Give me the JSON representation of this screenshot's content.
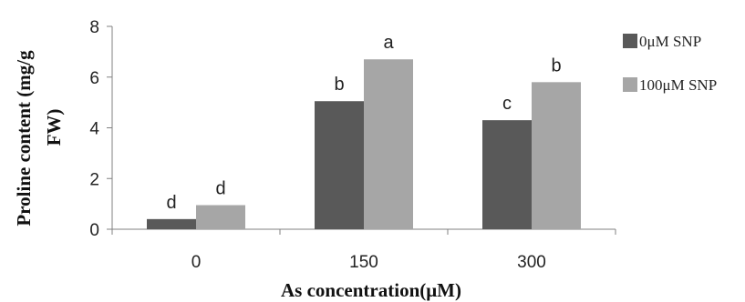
{
  "chart_data": {
    "type": "bar",
    "categories": [
      "0",
      "150",
      "300"
    ],
    "series": [
      {
        "name": "0μM SNP",
        "values": [
          0.4,
          5.05,
          4.3
        ],
        "labels": [
          "d",
          "b",
          "c"
        ],
        "color": "#595959"
      },
      {
        "name": "100μM SNP",
        "values": [
          0.95,
          6.7,
          5.8
        ],
        "labels": [
          "d",
          "a",
          "b"
        ],
        "color": "#a6a6a6"
      }
    ],
    "xlabel": "As concentration(μM)",
    "ylabel_lines": [
      "Proline content (mg/g",
      "FW)"
    ],
    "ylim": [
      0,
      8
    ],
    "yticks": [
      "0",
      "2",
      "4",
      "6",
      "8"
    ],
    "grid": false,
    "legend_position": "right"
  }
}
